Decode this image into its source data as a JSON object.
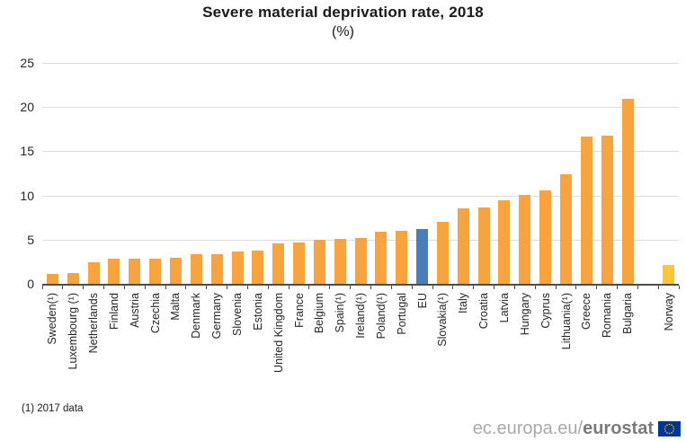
{
  "title": "Severe material deprivation rate, 2018",
  "subtitle": "(%)",
  "footnote": "(1) 2017 data",
  "footer": {
    "url_prefix": "ec.europa.eu/",
    "url_brand": "eurostat",
    "flag_icon": "eu-flag-icon"
  },
  "colors": {
    "member_bar": "#F8A33C",
    "eu_bar": "#4A7EBB",
    "efta_bar": "#FDC72F",
    "grid": "#DCDCDC",
    "axis": "#4D4D4D",
    "flag_blue": "#003399",
    "flag_stars": "#FFCC00"
  },
  "chart_data": {
    "type": "bar",
    "title": "Severe material deprivation rate, 2018",
    "unit": "%",
    "xlabel": "",
    "ylabel": "",
    "ylim": [
      0,
      25
    ],
    "yticks": [
      0,
      5,
      10,
      15,
      20,
      25
    ],
    "grid": true,
    "legend": "none",
    "categories": [
      "Sweden(¹)",
      "Luxembourg (¹)",
      "Netherlands",
      "Finland",
      "Austria",
      "Czechia",
      "Malta",
      "Denmark",
      "Germany",
      "Slovenia",
      "Estonia",
      "United Kingdom",
      "France",
      "Belgium",
      "Spain(¹)",
      "Ireland(¹)",
      "Poland(¹)",
      "Portugal",
      "EU",
      "Slovakia(¹)",
      "Italy",
      "Croatia",
      "Latvia",
      "Hungary",
      "Cyprus",
      "Lithuania(¹)",
      "Greece",
      "Romania",
      "Bulgaria",
      "Norway"
    ],
    "values": [
      1.1,
      1.2,
      2.4,
      2.8,
      2.8,
      2.8,
      3.0,
      3.4,
      3.4,
      3.7,
      3.8,
      4.6,
      4.7,
      5.0,
      5.1,
      5.2,
      5.9,
      6.0,
      6.2,
      7.0,
      8.5,
      8.6,
      9.5,
      10.1,
      10.6,
      12.4,
      16.7,
      16.8,
      20.9,
      2.1
    ],
    "groups": [
      "member",
      "member",
      "member",
      "member",
      "member",
      "member",
      "member",
      "member",
      "member",
      "member",
      "member",
      "member",
      "member",
      "member",
      "member",
      "member",
      "member",
      "member",
      "eu",
      "member",
      "member",
      "member",
      "member",
      "member",
      "member",
      "member",
      "member",
      "member",
      "member",
      "efta"
    ],
    "gap_before": [
      "Norway"
    ]
  }
}
